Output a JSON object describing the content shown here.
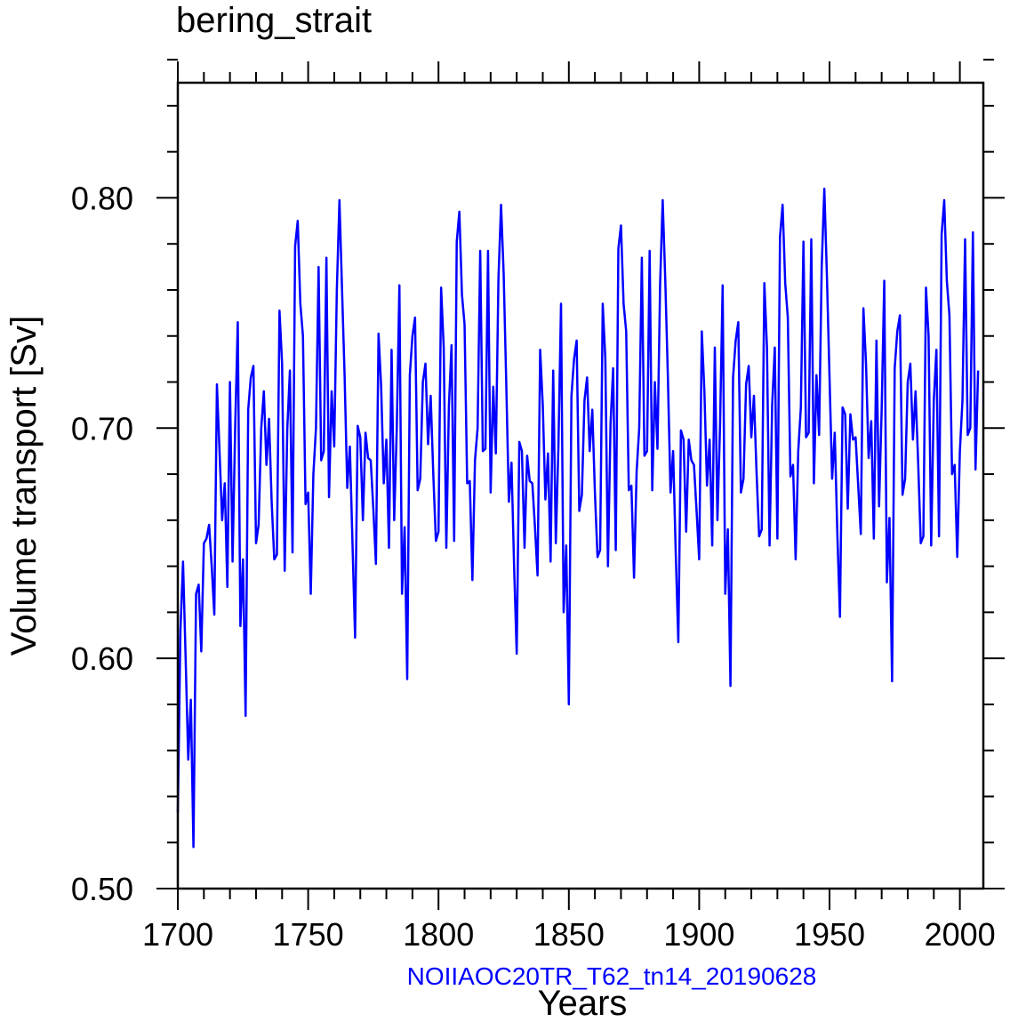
{
  "chart_data": {
    "type": "line",
    "title": "bering_strait",
    "xlabel": "Years",
    "ylabel": "Volume transport [Sv]",
    "caption": "NOIIAOC20TR_T62_tn14_20190628",
    "xlim": [
      1700,
      2009
    ],
    "ylim": [
      0.5,
      0.85
    ],
    "x_major_ticks": [
      1700,
      1750,
      1800,
      1850,
      1900,
      1950,
      2000
    ],
    "x_tick_labels": [
      "1700",
      "1750",
      "1800",
      "1850",
      "1900",
      "1950",
      "2000"
    ],
    "y_major_ticks": [
      0.5,
      0.6,
      0.7,
      0.8
    ],
    "y_tick_labels": [
      "0.50",
      "0.60",
      "0.70",
      "0.80"
    ],
    "grid": false,
    "series": [
      {
        "color": "#0000ff",
        "x_start": 1700,
        "x_step": 1,
        "values": [
          0.533,
          0.612,
          0.642,
          0.6,
          0.556,
          0.582,
          0.518,
          0.628,
          0.632,
          0.603,
          0.65,
          0.652,
          0.658,
          0.64,
          0.619,
          0.719,
          0.69,
          0.66,
          0.676,
          0.631,
          0.72,
          0.642,
          0.7,
          0.746,
          0.614,
          0.643,
          0.575,
          0.708,
          0.722,
          0.727,
          0.65,
          0.658,
          0.7,
          0.716,
          0.684,
          0.704,
          0.668,
          0.643,
          0.645,
          0.751,
          0.728,
          0.638,
          0.7,
          0.725,
          0.646,
          0.779,
          0.79,
          0.754,
          0.74,
          0.667,
          0.672,
          0.628,
          0.68,
          0.7,
          0.77,
          0.686,
          0.69,
          0.774,
          0.67,
          0.716,
          0.692,
          0.76,
          0.799,
          0.76,
          0.722,
          0.674,
          0.692,
          0.65,
          0.609,
          0.701,
          0.696,
          0.66,
          0.698,
          0.687,
          0.686,
          0.665,
          0.641,
          0.741,
          0.718,
          0.676,
          0.695,
          0.648,
          0.734,
          0.66,
          0.7,
          0.762,
          0.628,
          0.657,
          0.591,
          0.723,
          0.74,
          0.748,
          0.673,
          0.678,
          0.72,
          0.728,
          0.693,
          0.714,
          0.68,
          0.651,
          0.655,
          0.761,
          0.735,
          0.648,
          0.71,
          0.736,
          0.651,
          0.781,
          0.794,
          0.758,
          0.745,
          0.676,
          0.677,
          0.634,
          0.686,
          0.7,
          0.777,
          0.69,
          0.691,
          0.777,
          0.672,
          0.718,
          0.689,
          0.765,
          0.797,
          0.767,
          0.719,
          0.668,
          0.685,
          0.64,
          0.602,
          0.694,
          0.69,
          0.648,
          0.688,
          0.677,
          0.676,
          0.657,
          0.636,
          0.734,
          0.71,
          0.669,
          0.689,
          0.642,
          0.725,
          0.65,
          0.692,
          0.754,
          0.62,
          0.649,
          0.58,
          0.714,
          0.73,
          0.738,
          0.664,
          0.671,
          0.712,
          0.722,
          0.69,
          0.708,
          0.672,
          0.644,
          0.647,
          0.754,
          0.73,
          0.64,
          0.702,
          0.726,
          0.647,
          0.778,
          0.788,
          0.754,
          0.742,
          0.673,
          0.675,
          0.635,
          0.681,
          0.7,
          0.774,
          0.688,
          0.69,
          0.777,
          0.673,
          0.72,
          0.691,
          0.762,
          0.799,
          0.764,
          0.722,
          0.672,
          0.69,
          0.646,
          0.607,
          0.699,
          0.695,
          0.655,
          0.695,
          0.686,
          0.684,
          0.664,
          0.643,
          0.742,
          0.716,
          0.675,
          0.695,
          0.649,
          0.735,
          0.66,
          0.701,
          0.762,
          0.628,
          0.656,
          0.588,
          0.722,
          0.738,
          0.746,
          0.672,
          0.678,
          0.719,
          0.727,
          0.696,
          0.714,
          0.681,
          0.653,
          0.656,
          0.763,
          0.735,
          0.649,
          0.71,
          0.735,
          0.652,
          0.783,
          0.797,
          0.763,
          0.748,
          0.679,
          0.684,
          0.643,
          0.69,
          0.709,
          0.781,
          0.696,
          0.698,
          0.782,
          0.676,
          0.723,
          0.697,
          0.77,
          0.804,
          0.766,
          0.722,
          0.678,
          0.698,
          0.654,
          0.618,
          0.709,
          0.706,
          0.665,
          0.706,
          0.695,
          0.696,
          0.675,
          0.654,
          0.752,
          0.728,
          0.687,
          0.703,
          0.652,
          0.738,
          0.666,
          0.708,
          0.764,
          0.633,
          0.661,
          0.59,
          0.726,
          0.742,
          0.749,
          0.671,
          0.678,
          0.72,
          0.728,
          0.695,
          0.716,
          0.685,
          0.65,
          0.653,
          0.761,
          0.74,
          0.649,
          0.712,
          0.734,
          0.653,
          0.784,
          0.799,
          0.764,
          0.749,
          0.68,
          0.684,
          0.644,
          0.69,
          0.712,
          0.782,
          0.697,
          0.7,
          0.785,
          0.682,
          0.725
        ]
      }
    ]
  }
}
